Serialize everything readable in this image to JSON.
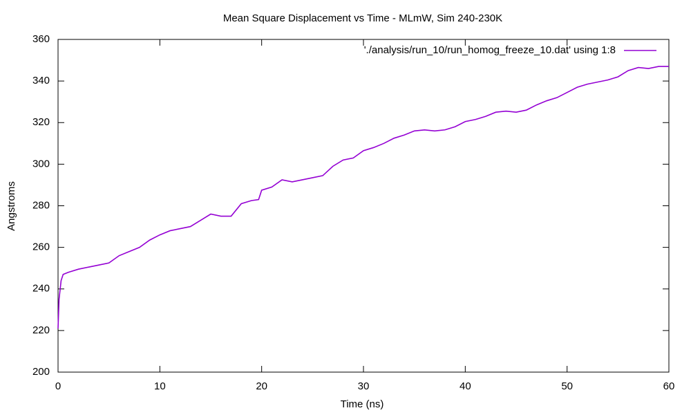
{
  "chart_data": {
    "type": "line",
    "title": "Mean Square Displacement vs Time - MLmW, Sim 240-230K",
    "xlabel": "Time (ns)",
    "ylabel": "Angstroms",
    "x": [
      0,
      0.1,
      0.3,
      0.5,
      1,
      2,
      3,
      4,
      5,
      6,
      7,
      8,
      9,
      10,
      11,
      12,
      13,
      14,
      15,
      16,
      17,
      18,
      19,
      19.7,
      20,
      21,
      22,
      23,
      24,
      25,
      26,
      27,
      28,
      29,
      30,
      31,
      32,
      33,
      34,
      35,
      36,
      37,
      38,
      39,
      40,
      41,
      42,
      43,
      44,
      45,
      46,
      47,
      48,
      49,
      50,
      51,
      52,
      53,
      54,
      55,
      56,
      57,
      58,
      59,
      60
    ],
    "series": [
      {
        "name": "'./analysis/run_10/run_homog_freeze_10.dat' using 1:8",
        "color": "#9400d3",
        "values": [
          221,
          235,
          244,
          247,
          248,
          249.5,
          250.5,
          251.5,
          252.5,
          256,
          258,
          260,
          263.5,
          266,
          268,
          269,
          270,
          273,
          276,
          275,
          275,
          281,
          282.5,
          283,
          287.5,
          289,
          292.5,
          291.5,
          292.5,
          293.5,
          294.5,
          299,
          302,
          303,
          306.5,
          308,
          310,
          312.5,
          314,
          316,
          316.5,
          316,
          316.5,
          318,
          320.5,
          321.5,
          323,
          325,
          325.5,
          325,
          326,
          328.5,
          330.5,
          332,
          334.5,
          337,
          338.5,
          339.5,
          340.5,
          342,
          345,
          346.5,
          346,
          347,
          347
        ]
      }
    ],
    "xlim": [
      0,
      60
    ],
    "ylim": [
      200,
      360
    ],
    "xticks": [
      0,
      10,
      20,
      30,
      40,
      50,
      60
    ],
    "yticks": [
      200,
      220,
      240,
      260,
      280,
      300,
      320,
      340,
      360
    ],
    "legend": "top-right",
    "grid": false
  }
}
